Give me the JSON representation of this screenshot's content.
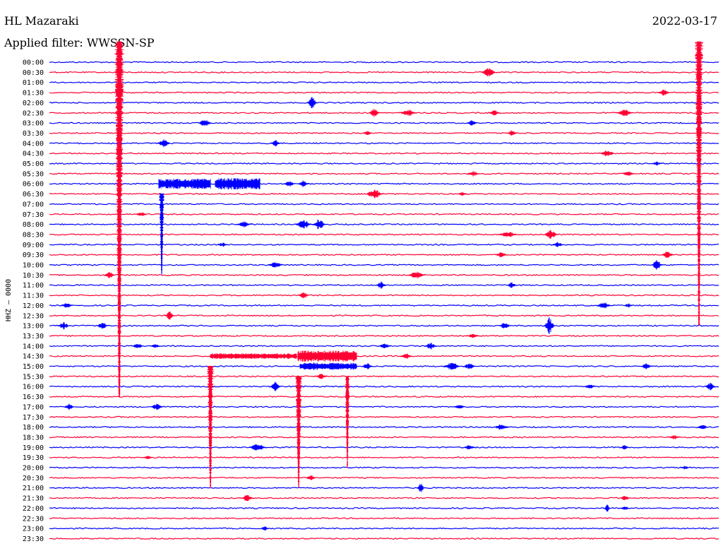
{
  "header": {
    "station": "HL Mazaraki",
    "date": "2022-03-17",
    "filter": "Applied filter: WWSSN-SP"
  },
  "chart_data": {
    "type": "line",
    "ylabel": "HHZ – 0000",
    "colors": [
      "#0000ff",
      "#ff0033"
    ],
    "rows": [
      "00:00",
      "00:30",
      "01:00",
      "01:30",
      "02:00",
      "02:30",
      "03:00",
      "03:30",
      "04:00",
      "04:30",
      "05:00",
      "05:30",
      "06:00",
      "06:30",
      "07:00",
      "07:30",
      "08:00",
      "08:30",
      "09:00",
      "09:30",
      "10:00",
      "10:30",
      "11:00",
      "11:30",
      "12:00",
      "12:30",
      "13:00",
      "13:30",
      "14:00",
      "14:30",
      "15:00",
      "15:30",
      "16:00",
      "16:30",
      "17:00",
      "17:30",
      "18:00",
      "18:30",
      "19:00",
      "19:30",
      "20:00",
      "20:30",
      "21:00",
      "21:30",
      "22:00",
      "22:30",
      "23:00",
      "23:30"
    ],
    "x_minutes_per_row": 30
  }
}
